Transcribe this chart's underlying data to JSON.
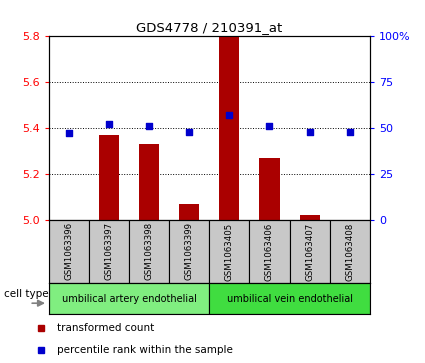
{
  "title": "GDS4778 / 210391_at",
  "samples": [
    "GSM1063396",
    "GSM1063397",
    "GSM1063398",
    "GSM1063399",
    "GSM1063405",
    "GSM1063406",
    "GSM1063407",
    "GSM1063408"
  ],
  "transformed_count": [
    5.0,
    5.37,
    5.33,
    5.07,
    5.8,
    5.27,
    5.02,
    5.0
  ],
  "percentile_rank": [
    47,
    52,
    51,
    48,
    57,
    51,
    48,
    48
  ],
  "ylim_left": [
    5.0,
    5.8
  ],
  "ylim_right": [
    0,
    100
  ],
  "yticks_left": [
    5.0,
    5.2,
    5.4,
    5.6,
    5.8
  ],
  "yticks_right": [
    0,
    25,
    50,
    75,
    100
  ],
  "ytick_labels_right": [
    "0",
    "25",
    "50",
    "75",
    "100%"
  ],
  "cell_type_label": "cell type",
  "bar_color": "#AA0000",
  "dot_color": "#0000CC",
  "bar_width": 0.5,
  "legend_red_label": "transformed count",
  "legend_blue_label": "percentile rank within the sample",
  "sample_box_color": "#C8C8C8",
  "cell_type_groups": [
    {
      "label": "umbilical artery endothelial",
      "start": 0,
      "end": 3,
      "color": "#80EE80"
    },
    {
      "label": "umbilical vein endothelial",
      "start": 4,
      "end": 7,
      "color": "#40DD40"
    }
  ]
}
